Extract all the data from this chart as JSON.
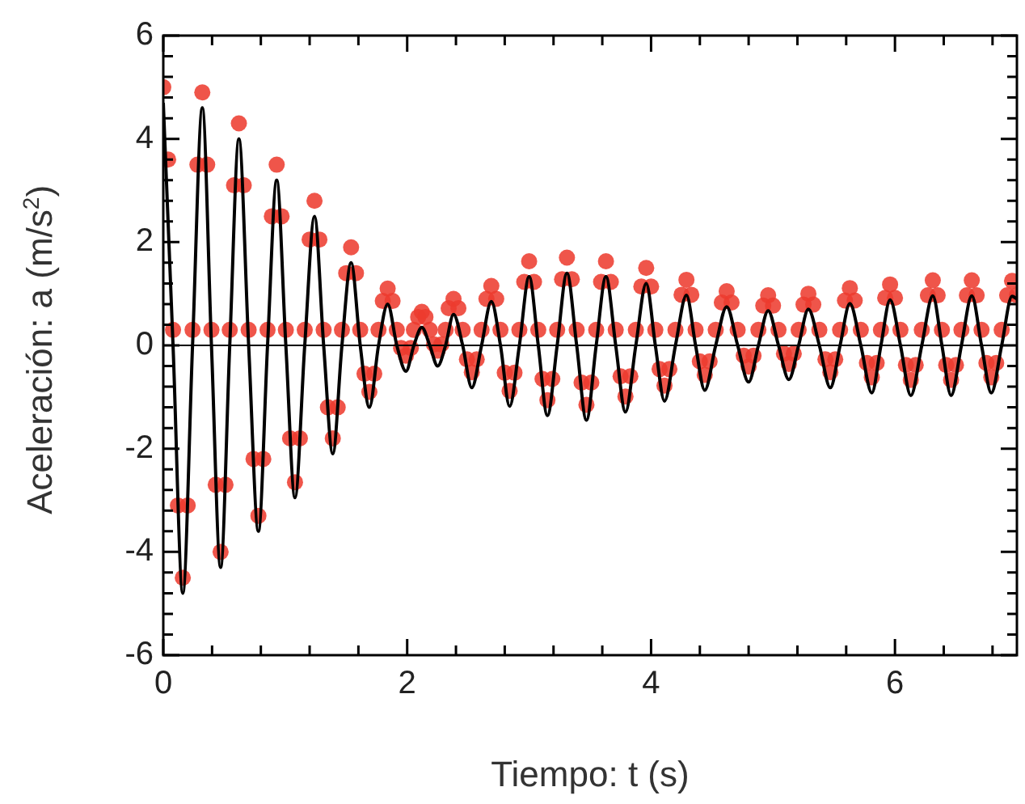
{
  "chart_data": {
    "type": "scatter",
    "xlabel": "Tiempo: t (s)",
    "ylabel": "Aceleración: a (m/s$^{2}$)",
    "xlim": [
      0,
      7
    ],
    "ylim": [
      -6,
      6
    ],
    "xticks": [
      0,
      {
        "value": 0.4,
        "label": null
      },
      {
        "value": 0.8,
        "label": null
      },
      {
        "value": 1.2,
        "label": null
      },
      {
        "value": 1.6,
        "label": null
      },
      2,
      {
        "value": 2.4,
        "label": null
      },
      {
        "value": 2.8,
        "label": null
      },
      {
        "value": 3.2,
        "label": null
      },
      {
        "value": 3.6,
        "label": null
      },
      4,
      {
        "value": 4.4,
        "label": null
      },
      {
        "value": 4.8,
        "label": null
      },
      {
        "value": 5.2,
        "label": null
      },
      {
        "value": 5.6,
        "label": null
      },
      6,
      {
        "value": 6.4,
        "label": null
      },
      {
        "value": 6.8,
        "label": null
      }
    ],
    "yticks": [
      -6,
      {
        "value": -5.6,
        "label": null
      },
      {
        "value": -5.2,
        "label": null
      },
      {
        "value": -4.8,
        "label": null
      },
      {
        "value": -4.4,
        "label": null
      },
      -4,
      {
        "value": -3.6,
        "label": null
      },
      {
        "value": -3.2,
        "label": null
      },
      {
        "value": -2.8,
        "label": null
      },
      {
        "value": -2.4,
        "label": null
      },
      -2,
      {
        "value": -1.6,
        "label": null
      },
      {
        "value": -1.2,
        "label": null
      },
      {
        "value": -0.8,
        "label": null
      },
      {
        "value": -0.4,
        "label": null
      },
      0,
      {
        "value": 0.4,
        "label": null
      },
      {
        "value": 0.8,
        "label": null
      },
      {
        "value": 1.2,
        "label": null
      },
      {
        "value": 1.6,
        "label": null
      },
      2,
      {
        "value": 2.4,
        "label": null
      },
      {
        "value": 2.8,
        "label": null
      },
      {
        "value": 3.2,
        "label": null
      },
      {
        "value": 3.6,
        "label": null
      },
      4,
      {
        "value": 4.4,
        "label": null
      },
      {
        "value": 4.8,
        "label": null
      },
      {
        "value": 5.2,
        "label": null
      },
      {
        "value": 5.6,
        "label": null
      },
      6
    ],
    "ref_lines": [
      {
        "axis": "y",
        "value": 0,
        "color": "#000000"
      }
    ],
    "series": [
      {
        "color": "#ec3b2e",
        "marker": "circle",
        "x": [
          0,
          0.04,
          0.08,
          0.12,
          0.16,
          0.2,
          0.24,
          0.28,
          0.32,
          0.36,
          0.395,
          0.43,
          0.47,
          0.51,
          0.545,
          0.58,
          0.62,
          0.66,
          0.7,
          0.74,
          0.78,
          0.82,
          0.855,
          0.89,
          0.93,
          0.97,
          1.005,
          1.04,
          1.08,
          1.12,
          1.16,
          1.2,
          1.24,
          1.28,
          1.315,
          1.35,
          1.39,
          1.43,
          1.465,
          1.5,
          1.54,
          1.58,
          1.615,
          1.65,
          1.69,
          1.73,
          1.765,
          1.8,
          1.84,
          1.88,
          1.915,
          1.95,
          1.99,
          2.03,
          2.055,
          2.09,
          2.12,
          2.15,
          2.185,
          2.22,
          2.25,
          2.28,
          2.315,
          2.34,
          2.38,
          2.42,
          2.455,
          2.49,
          2.53,
          2.57,
          2.61,
          2.65,
          2.69,
          2.73,
          2.765,
          2.8,
          2.84,
          2.88,
          2.92,
          2.96,
          3,
          3.04,
          3.075,
          3.11,
          3.15,
          3.19,
          3.23,
          3.27,
          3.31,
          3.35,
          3.39,
          3.43,
          3.47,
          3.51,
          3.55,
          3.59,
          3.63,
          3.67,
          3.71,
          3.75,
          3.79,
          3.83,
          3.875,
          3.92,
          3.96,
          4,
          4.035,
          4.07,
          4.11,
          4.15,
          4.2,
          4.25,
          4.29,
          4.33,
          4.365,
          4.4,
          4.44,
          4.48,
          4.53,
          4.58,
          4.62,
          4.66,
          4.71,
          4.76,
          4.8,
          4.84,
          4.88,
          4.92,
          4.96,
          5,
          5.045,
          5.09,
          5.13,
          5.17,
          5.21,
          5.25,
          5.29,
          5.33,
          5.38,
          5.43,
          5.47,
          5.51,
          5.55,
          5.59,
          5.63,
          5.67,
          5.72,
          5.77,
          5.81,
          5.85,
          5.885,
          5.92,
          5.96,
          6,
          6.045,
          6.09,
          6.13,
          6.17,
          6.22,
          6.27,
          6.31,
          6.35,
          6.385,
          6.42,
          6.46,
          6.5,
          6.545,
          6.59,
          6.63,
          6.67,
          6.71,
          6.75,
          6.79,
          6.83,
          6.875,
          6.92,
          6.96,
          7
        ],
        "values": [
          5,
          3.6,
          0.3,
          -3.1,
          -4.5,
          -3.1,
          0.3,
          3.5,
          4.9,
          3.5,
          0.3,
          -2.7,
          -4,
          -2.7,
          0.3,
          3.1,
          4.3,
          3.1,
          0.3,
          -2.2,
          -3.3,
          -2.2,
          0.3,
          2.5,
          3.5,
          2.5,
          0.3,
          -1.8,
          -2.65,
          -1.8,
          0.3,
          2.05,
          2.8,
          2.05,
          0.3,
          -1.2,
          -1.8,
          -1.2,
          0.3,
          1.4,
          1.9,
          1.4,
          0.3,
          -0.55,
          -0.9,
          -0.55,
          0.3,
          0.86,
          1.1,
          0.86,
          0.3,
          -0.05,
          -0.2,
          -0.05,
          0.3,
          0.55,
          0.65,
          0.55,
          0.3,
          0.02,
          -0.1,
          0.02,
          0.3,
          0.72,
          0.9,
          0.72,
          0.3,
          -0.27,
          -0.52,
          -0.27,
          0.3,
          0.9,
          1.15,
          0.9,
          0.3,
          -0.53,
          -0.88,
          -0.53,
          0.3,
          1.23,
          1.63,
          1.23,
          0.3,
          -0.65,
          -1.06,
          -0.65,
          0.3,
          1.28,
          1.7,
          1.28,
          0.3,
          -0.72,
          -1.15,
          -0.72,
          0.3,
          1.23,
          1.63,
          1.23,
          0.3,
          -0.6,
          -0.99,
          -0.6,
          0.3,
          1.14,
          1.5,
          1.14,
          0.3,
          -0.46,
          -0.78,
          -0.46,
          0.3,
          0.98,
          1.27,
          0.98,
          0.3,
          -0.31,
          -0.57,
          -0.31,
          0.3,
          0.83,
          1.05,
          0.83,
          0.3,
          -0.2,
          -0.41,
          -0.2,
          0.3,
          0.77,
          0.97,
          0.77,
          0.3,
          -0.16,
          -0.36,
          -0.16,
          0.3,
          0.79,
          1,
          0.79,
          0.3,
          -0.27,
          -0.52,
          -0.27,
          0.3,
          0.87,
          1.11,
          0.87,
          0.3,
          -0.34,
          -0.62,
          -0.34,
          0.3,
          0.92,
          1.18,
          0.92,
          0.3,
          -0.38,
          -0.67,
          -0.38,
          0.3,
          0.97,
          1.26,
          0.97,
          0.3,
          -0.38,
          -0.67,
          -0.38,
          0.3,
          0.97,
          1.26,
          0.97,
          0.3,
          -0.34,
          -0.62,
          -0.34,
          0.3,
          0.97,
          1.25,
          0.97
        ]
      },
      {
        "type": "line",
        "color": "#000000",
        "marker": "none",
        "line_style": "solid",
        "x": [
          0,
          0.08,
          0.16,
          0.24,
          0.32,
          0.395,
          0.47,
          0.545,
          0.62,
          0.7,
          0.78,
          0.855,
          0.93,
          1.005,
          1.08,
          1.16,
          1.24,
          1.315,
          1.39,
          1.465,
          1.54,
          1.615,
          1.69,
          1.765,
          1.84,
          1.915,
          1.99,
          2.055,
          2.12,
          2.185,
          2.25,
          2.315,
          2.38,
          2.455,
          2.53,
          2.61,
          2.69,
          2.765,
          2.84,
          2.92,
          3,
          3.075,
          3.15,
          3.23,
          3.31,
          3.39,
          3.47,
          3.55,
          3.63,
          3.71,
          3.79,
          3.875,
          3.96,
          4.035,
          4.11,
          4.2,
          4.29,
          4.365,
          4.44,
          4.53,
          4.62,
          4.71,
          4.8,
          4.88,
          4.96,
          5.045,
          5.13,
          5.21,
          5.29,
          5.38,
          5.47,
          5.55,
          5.63,
          5.72,
          5.81,
          5.885,
          5.96,
          6.045,
          6.13,
          6.22,
          6.31,
          6.385,
          6.46,
          6.545,
          6.63,
          6.71,
          6.79,
          6.875,
          6.96,
          7
        ],
        "values": [
          4.7,
          0,
          -4.8,
          0,
          4.6,
          0,
          -4.3,
          0,
          4,
          0,
          -3.6,
          0,
          3.2,
          0,
          -2.95,
          0,
          2.5,
          0,
          -2.1,
          0,
          1.6,
          0,
          -1.2,
          0,
          0.8,
          0,
          -0.5,
          0,
          0.35,
          0,
          -0.4,
          0,
          0.6,
          0,
          -0.82,
          0,
          0.85,
          0,
          -1.18,
          0,
          1.33,
          0,
          -1.36,
          0,
          1.4,
          0,
          -1.45,
          0,
          1.33,
          0,
          -1.29,
          0,
          1.2,
          0,
          -1.08,
          0,
          0.97,
          0,
          -0.87,
          0,
          0.75,
          0,
          -0.71,
          0,
          0.67,
          0,
          -0.66,
          0,
          0.7,
          0,
          -0.82,
          0,
          0.81,
          0,
          -0.92,
          0,
          0.88,
          0,
          -0.97,
          0,
          0.96,
          0,
          -0.97,
          0,
          0.96,
          0,
          -0.92,
          0,
          0.95,
          0.9
        ]
      }
    ]
  }
}
